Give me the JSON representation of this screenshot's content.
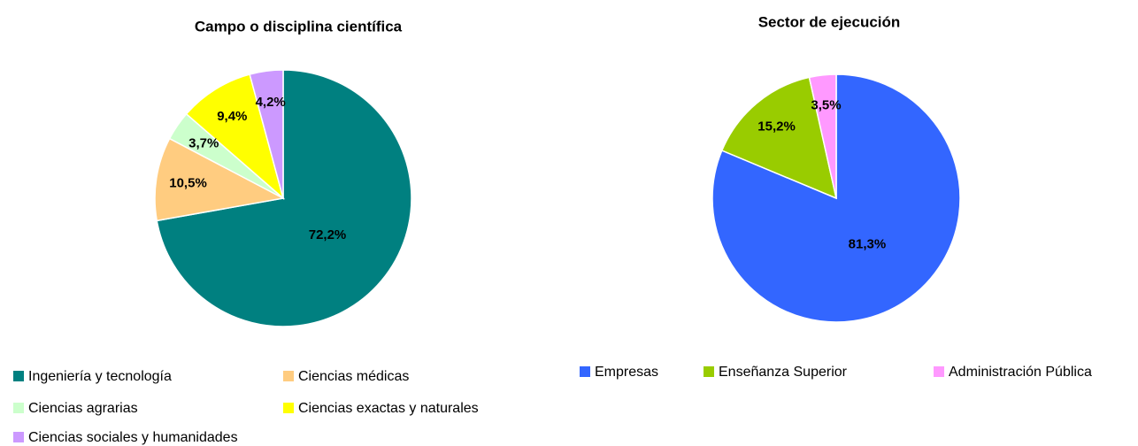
{
  "chart_data": [
    {
      "type": "pie",
      "title": "Campo o disciplina científica",
      "categories": [
        "Ingeniería y tecnología",
        "Ciencias médicas",
        "Ciencias agrarias",
        "Ciencias exactas y naturales",
        "Ciencias sociales y humanidades"
      ],
      "values": [
        72.2,
        10.5,
        3.7,
        9.4,
        4.2
      ],
      "value_labels": [
        "72,2%",
        "10,5%",
        "3,7%",
        "9,4%",
        "4,2%"
      ],
      "colors": [
        "#008080",
        "#ffcc80",
        "#ccffcc",
        "#ffff00",
        "#cc99ff"
      ]
    },
    {
      "type": "pie",
      "title": "Sector de ejecución",
      "categories": [
        "Empresas",
        "Enseñanza Superior",
        "Administración Pública"
      ],
      "values": [
        81.3,
        15.2,
        3.5
      ],
      "value_labels": [
        "81,3%",
        "15,2%",
        "3,5%"
      ],
      "colors": [
        "#3366ff",
        "#99cc00",
        "#ff99ff"
      ]
    }
  ]
}
